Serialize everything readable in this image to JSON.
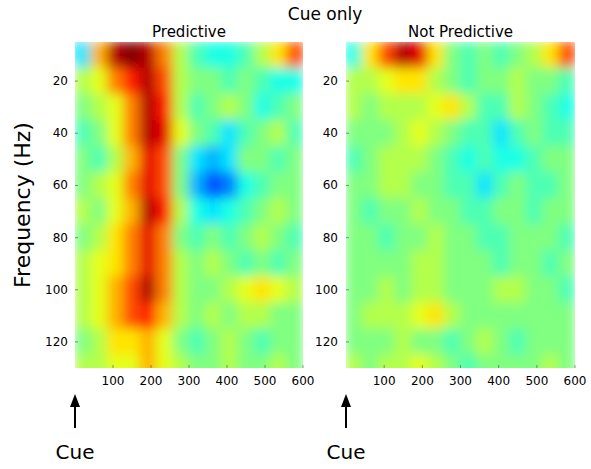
{
  "suptitle": "Cue only",
  "chart_data": [
    {
      "type": "heatmap",
      "title": "Predictive",
      "y_label": "Frequency (Hz)",
      "xlim": [
        0,
        600
      ],
      "xticks": [
        100,
        200,
        300,
        400,
        500,
        600
      ],
      "ylim": [
        5,
        130
      ],
      "yticks": [
        20,
        40,
        60,
        80,
        100,
        120
      ],
      "color_range": [
        -1,
        1
      ],
      "grid": false,
      "annotations": [
        {
          "text": "Cue",
          "x": 0
        }
      ],
      "x": [
        21,
        64,
        107,
        150,
        193,
        236,
        279,
        321,
        364,
        407,
        450,
        493,
        536,
        579
      ],
      "y": [
        10,
        20,
        30,
        40,
        50,
        60,
        70,
        80,
        90,
        100,
        110,
        120,
        130
      ],
      "cells": [
        [
          -0.3,
          0.4,
          0.9,
          1.0,
          0.9,
          0.5,
          0.1,
          -0.1,
          -0.2,
          -0.2,
          -0.1,
          0.1,
          0.3,
          0.6
        ],
        [
          0.1,
          0.2,
          0.5,
          0.7,
          0.9,
          0.6,
          0.1,
          0.0,
          0.0,
          -0.1,
          0.0,
          -0.1,
          -0.2,
          -0.2
        ],
        [
          0.0,
          0.1,
          0.2,
          0.5,
          0.9,
          0.7,
          0.1,
          -0.1,
          0.0,
          0.1,
          0.0,
          -0.2,
          -0.1,
          0.0
        ],
        [
          -0.1,
          0.0,
          0.2,
          0.5,
          0.9,
          0.8,
          0.2,
          0.0,
          -0.1,
          -0.3,
          -0.1,
          0.0,
          0.1,
          -0.1
        ],
        [
          0.0,
          -0.1,
          0.1,
          0.4,
          0.8,
          0.6,
          0.0,
          -0.3,
          -0.4,
          -0.3,
          0.0,
          0.0,
          -0.1,
          0.0
        ],
        [
          0.0,
          0.1,
          0.2,
          0.5,
          0.8,
          0.6,
          0.0,
          -0.4,
          -0.6,
          -0.5,
          -0.2,
          -0.1,
          0.0,
          0.0
        ],
        [
          0.1,
          0.0,
          0.2,
          0.4,
          0.9,
          0.7,
          0.1,
          -0.2,
          -0.3,
          -0.2,
          -0.1,
          0.0,
          0.1,
          0.0
        ],
        [
          0.0,
          0.1,
          0.3,
          0.5,
          0.8,
          0.5,
          0.0,
          -0.1,
          0.0,
          -0.1,
          0.0,
          0.1,
          0.0,
          -0.1
        ],
        [
          0.1,
          0.2,
          0.3,
          0.5,
          0.8,
          0.5,
          0.1,
          0.0,
          0.1,
          0.0,
          -0.1,
          0.0,
          -0.1,
          0.0
        ],
        [
          0.1,
          0.2,
          0.4,
          0.6,
          0.9,
          0.5,
          0.1,
          0.0,
          0.0,
          0.1,
          0.2,
          0.3,
          0.2,
          0.1
        ],
        [
          0.1,
          0.2,
          0.4,
          0.6,
          0.7,
          0.4,
          0.1,
          0.0,
          0.1,
          0.0,
          0.1,
          0.1,
          0.0,
          0.0
        ],
        [
          0.0,
          0.1,
          0.3,
          0.3,
          0.4,
          0.2,
          0.0,
          -0.1,
          0.0,
          0.1,
          0.0,
          -0.1,
          0.0,
          0.0
        ],
        [
          0.1,
          0.1,
          0.2,
          0.2,
          0.4,
          0.2,
          0.1,
          0.0,
          0.0,
          0.1,
          0.0,
          0.0,
          0.1,
          0.0
        ]
      ]
    },
    {
      "type": "heatmap",
      "title": "Not Predictive",
      "xlim": [
        0,
        600
      ],
      "xticks": [
        100,
        200,
        300,
        400,
        500,
        600
      ],
      "ylim": [
        5,
        130
      ],
      "yticks": [
        20,
        40,
        60,
        80,
        100,
        120
      ],
      "color_range": [
        -1,
        1
      ],
      "grid": false,
      "annotations": [
        {
          "text": "Cue",
          "x": 0
        }
      ],
      "x": [
        21,
        64,
        107,
        150,
        193,
        236,
        279,
        321,
        364,
        407,
        450,
        493,
        536,
        579
      ],
      "y": [
        10,
        20,
        30,
        40,
        50,
        60,
        70,
        80,
        90,
        100,
        110,
        120,
        130
      ],
      "cells": [
        [
          -0.2,
          0.3,
          0.6,
          0.9,
          0.8,
          0.3,
          0.0,
          -0.1,
          0.0,
          -0.1,
          0.0,
          0.1,
          0.3,
          0.6
        ],
        [
          0.1,
          0.1,
          0.2,
          0.3,
          0.3,
          0.1,
          0.0,
          -0.1,
          0.0,
          0.0,
          0.1,
          0.0,
          0.0,
          -0.1
        ],
        [
          0.1,
          0.0,
          0.1,
          0.1,
          0.1,
          0.2,
          0.3,
          0.1,
          -0.1,
          -0.1,
          0.1,
          0.0,
          -0.1,
          -0.2
        ],
        [
          0.0,
          0.0,
          0.0,
          0.1,
          0.2,
          0.1,
          0.0,
          -0.1,
          -0.1,
          -0.3,
          -0.1,
          0.0,
          -0.1,
          -0.1
        ],
        [
          -0.1,
          0.0,
          0.1,
          0.1,
          0.1,
          0.0,
          -0.1,
          -0.2,
          -0.1,
          -0.2,
          -0.2,
          -0.1,
          0.0,
          0.0
        ],
        [
          0.0,
          0.0,
          0.1,
          0.1,
          0.0,
          0.0,
          -0.1,
          -0.1,
          -0.3,
          -0.1,
          0.0,
          -0.1,
          -0.1,
          0.0
        ],
        [
          0.0,
          -0.1,
          0.0,
          0.0,
          0.1,
          0.0,
          0.0,
          -0.1,
          -0.1,
          0.0,
          0.0,
          -0.1,
          0.0,
          0.0
        ],
        [
          0.0,
          0.0,
          -0.1,
          0.0,
          0.0,
          0.1,
          0.0,
          0.0,
          -0.1,
          -0.1,
          0.0,
          0.0,
          0.0,
          -0.1
        ],
        [
          0.0,
          0.0,
          0.0,
          0.0,
          0.1,
          0.1,
          0.0,
          0.0,
          0.0,
          -0.1,
          0.0,
          0.0,
          -0.1,
          0.0
        ],
        [
          0.0,
          0.0,
          0.1,
          0.0,
          0.1,
          0.1,
          0.0,
          0.0,
          0.0,
          0.1,
          0.1,
          0.0,
          0.0,
          -0.1
        ],
        [
          0.0,
          0.1,
          0.1,
          0.1,
          0.2,
          0.3,
          0.1,
          0.0,
          0.0,
          0.0,
          0.0,
          0.0,
          0.0,
          0.0
        ],
        [
          0.0,
          0.0,
          0.0,
          0.1,
          0.0,
          0.0,
          -0.1,
          0.0,
          0.1,
          0.0,
          -0.1,
          0.0,
          0.0,
          0.0
        ],
        [
          0.1,
          0.0,
          0.1,
          0.1,
          0.2,
          0.1,
          0.0,
          -0.1,
          0.0,
          0.0,
          0.0,
          0.0,
          0.1,
          0.0
        ]
      ]
    }
  ]
}
